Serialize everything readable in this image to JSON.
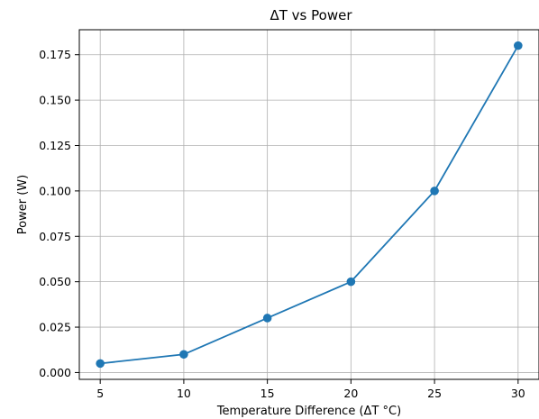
{
  "chart_data": {
    "type": "line",
    "title": "ΔT vs Power",
    "xlabel": "Temperature Difference (ΔT °C)",
    "ylabel": "Power (W)",
    "x": [
      5,
      10,
      15,
      20,
      25,
      30
    ],
    "series": [
      {
        "values": [
          0.005,
          0.01,
          0.03,
          0.05,
          0.1,
          0.18
        ]
      }
    ],
    "xticks": [
      "5",
      "10",
      "15",
      "20",
      "25",
      "30"
    ],
    "yticks": [
      "0.000",
      "0.025",
      "0.050",
      "0.075",
      "0.100",
      "0.125",
      "0.150",
      "0.175"
    ],
    "xlim": [
      3.75,
      31.25
    ],
    "ylim": [
      -0.00375,
      0.18875
    ],
    "grid": true,
    "marker": "circle",
    "line_color": "#1f77b4"
  }
}
